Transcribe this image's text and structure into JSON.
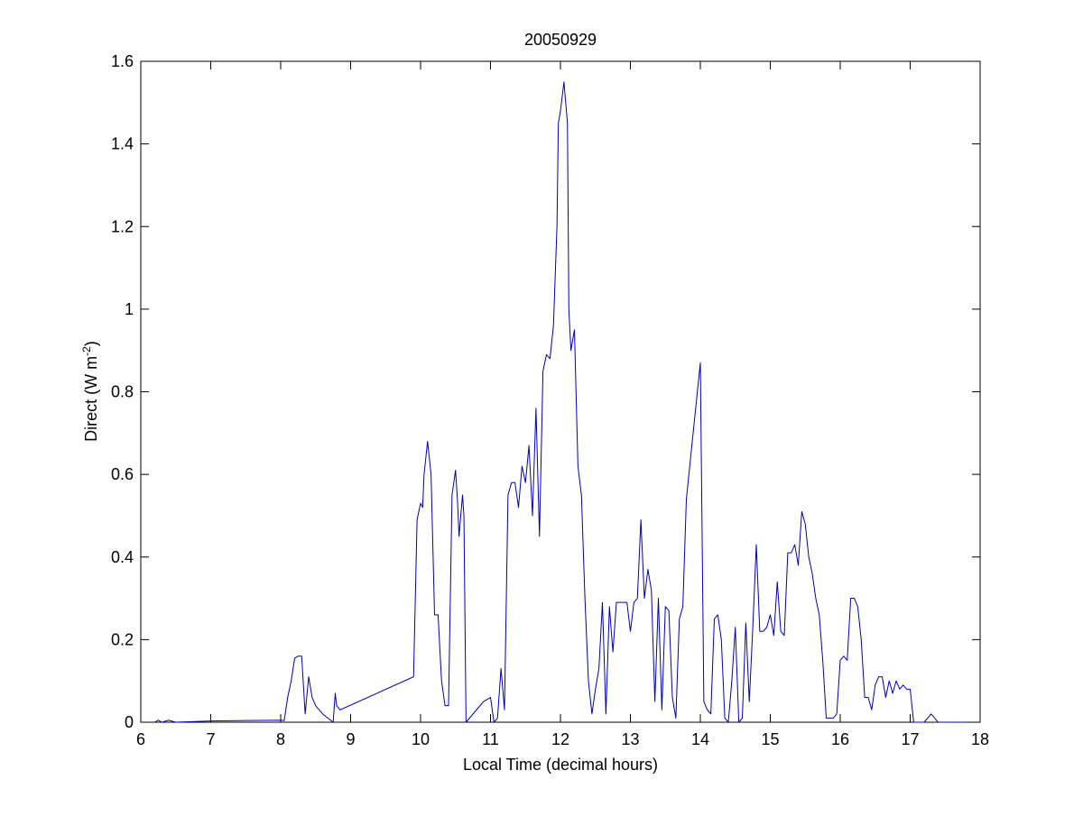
{
  "chart_data": {
    "type": "line",
    "title": "20050929",
    "xlabel": "Local Time (decimal hours)",
    "ylabel": "Direct (W m",
    "ylabel_exponent": "-2",
    "ylabel_close": ")",
    "xlim": [
      6,
      18
    ],
    "ylim": [
      0,
      1.6
    ],
    "x_ticks": [
      "6",
      "7",
      "8",
      "9",
      "10",
      "11",
      "12",
      "13",
      "14",
      "15",
      "16",
      "17",
      "18"
    ],
    "y_ticks": [
      "0",
      "0.2",
      "0.4",
      "0.6",
      "0.8",
      "1",
      "1.2",
      "1.4",
      "1.6"
    ],
    "grid": false,
    "legend": "none",
    "line_color": "#0000b4",
    "series": [
      {
        "x": [
          6.2,
          6.25,
          6.3,
          6.4,
          6.5,
          7.0,
          7.5,
          8.0,
          8.05,
          8.1,
          8.15,
          8.2,
          8.25,
          8.3,
          8.35,
          8.4,
          8.45,
          8.5,
          8.6,
          8.75,
          8.78,
          8.8,
          8.85,
          9.9,
          9.95,
          10.0,
          10.03,
          10.05,
          10.1,
          10.15,
          10.2,
          10.25,
          10.3,
          10.35,
          10.4,
          10.45,
          10.5,
          10.53,
          10.55,
          10.6,
          10.62,
          10.65,
          10.8,
          10.9,
          11.0,
          11.05,
          11.1,
          11.15,
          11.2,
          11.25,
          11.3,
          11.35,
          11.4,
          11.45,
          11.5,
          11.55,
          11.6,
          11.65,
          11.7,
          11.75,
          11.8,
          11.85,
          11.9,
          11.95,
          11.97,
          12.0,
          12.05,
          12.1,
          12.12,
          12.15,
          12.2,
          12.25,
          12.3,
          12.35,
          12.4,
          12.45,
          12.5,
          12.55,
          12.6,
          12.65,
          12.7,
          12.75,
          12.8,
          12.85,
          12.9,
          12.95,
          13.0,
          13.05,
          13.1,
          13.15,
          13.2,
          13.25,
          13.3,
          13.35,
          13.4,
          13.45,
          13.5,
          13.55,
          13.6,
          13.65,
          13.7,
          13.75,
          13.8,
          14.0,
          14.05,
          14.1,
          14.15,
          14.2,
          14.25,
          14.3,
          14.35,
          14.4,
          14.45,
          14.5,
          14.55,
          14.6,
          14.65,
          14.7,
          14.75,
          14.8,
          14.85,
          14.9,
          14.95,
          15.0,
          15.05,
          15.1,
          15.15,
          15.2,
          15.25,
          15.3,
          15.35,
          15.4,
          15.45,
          15.5,
          15.55,
          15.6,
          15.65,
          15.7,
          15.75,
          15.8,
          15.85,
          15.9,
          15.95,
          16.0,
          16.05,
          16.1,
          16.15,
          16.2,
          16.25,
          16.3,
          16.35,
          16.4,
          16.45,
          16.5,
          16.55,
          16.6,
          16.65,
          16.7,
          16.75,
          16.8,
          16.85,
          16.9,
          16.95,
          17.0,
          17.05,
          17.1,
          17.2,
          17.3,
          17.35,
          17.4,
          17.5,
          17.6,
          17.7,
          17.8
        ],
        "y": [
          0.0,
          0.005,
          0.0,
          0.005,
          0.0,
          0.003,
          0.004,
          0.005,
          0.004,
          0.06,
          0.1,
          0.155,
          0.16,
          0.16,
          0.02,
          0.11,
          0.06,
          0.04,
          0.02,
          0.0,
          0.07,
          0.04,
          0.03,
          0.11,
          0.49,
          0.53,
          0.52,
          0.6,
          0.68,
          0.6,
          0.26,
          0.26,
          0.1,
          0.04,
          0.04,
          0.55,
          0.61,
          0.53,
          0.45,
          0.55,
          0.5,
          0.0,
          0.03,
          0.05,
          0.06,
          0.0,
          0.01,
          0.13,
          0.03,
          0.55,
          0.58,
          0.58,
          0.52,
          0.62,
          0.58,
          0.67,
          0.5,
          0.76,
          0.45,
          0.85,
          0.89,
          0.88,
          0.96,
          1.2,
          1.45,
          1.48,
          1.55,
          1.45,
          1.0,
          0.9,
          0.95,
          0.62,
          0.55,
          0.3,
          0.1,
          0.02,
          0.08,
          0.13,
          0.29,
          0.02,
          0.28,
          0.17,
          0.29,
          0.29,
          0.29,
          0.29,
          0.22,
          0.29,
          0.3,
          0.49,
          0.3,
          0.37,
          0.32,
          0.05,
          0.3,
          0.03,
          0.28,
          0.27,
          0.06,
          0.01,
          0.25,
          0.28,
          0.54,
          0.87,
          0.05,
          0.03,
          0.02,
          0.25,
          0.26,
          0.2,
          0.01,
          0.0,
          0.1,
          0.23,
          0.0,
          0.01,
          0.24,
          0.05,
          0.23,
          0.43,
          0.22,
          0.22,
          0.23,
          0.26,
          0.21,
          0.34,
          0.22,
          0.21,
          0.41,
          0.41,
          0.43,
          0.38,
          0.51,
          0.48,
          0.4,
          0.36,
          0.3,
          0.26,
          0.15,
          0.01,
          0.01,
          0.01,
          0.02,
          0.15,
          0.16,
          0.15,
          0.3,
          0.3,
          0.28,
          0.2,
          0.06,
          0.06,
          0.03,
          0.09,
          0.11,
          0.11,
          0.06,
          0.1,
          0.07,
          0.1,
          0.08,
          0.09,
          0.08,
          0.08,
          0.0,
          0.0,
          0.0,
          0.02,
          0.01,
          0.0,
          0.0,
          0.0,
          0.0,
          0.0
        ]
      }
    ]
  }
}
